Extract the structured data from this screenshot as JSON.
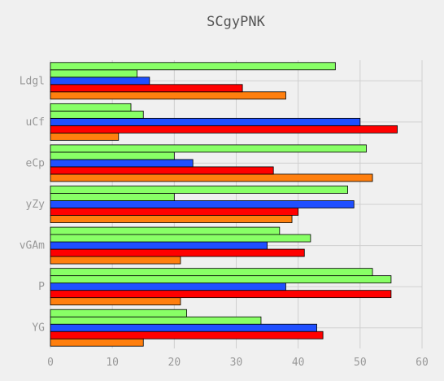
{
  "chart_data": {
    "type": "bar",
    "orientation": "horizontal",
    "title": "SCgyPNK",
    "xlabel": "",
    "ylabel": "",
    "xlim": [
      0,
      60
    ],
    "x_ticks": [
      "0",
      "10",
      "20",
      "30",
      "40",
      "50",
      "60"
    ],
    "categories": [
      "YG",
      "P",
      "vGAm",
      "yZy",
      "eCp",
      "uCf",
      "Ldgl"
    ],
    "grid": true,
    "series": [
      {
        "color": "#ff7f0e",
        "values": [
          15,
          21,
          21,
          39,
          52,
          11,
          38
        ]
      },
      {
        "color": "#ff0000",
        "values": [
          44,
          55,
          41,
          40,
          36,
          56,
          31
        ]
      },
      {
        "color": "#1f4fff",
        "values": [
          43,
          38,
          35,
          49,
          23,
          50,
          16
        ]
      },
      {
        "color": "#88ff66",
        "values": [
          34,
          55,
          42,
          20,
          20,
          15,
          14
        ]
      },
      {
        "color": "#88ff66",
        "values": [
          22,
          52,
          37,
          48,
          51,
          13,
          46
        ]
      }
    ]
  }
}
